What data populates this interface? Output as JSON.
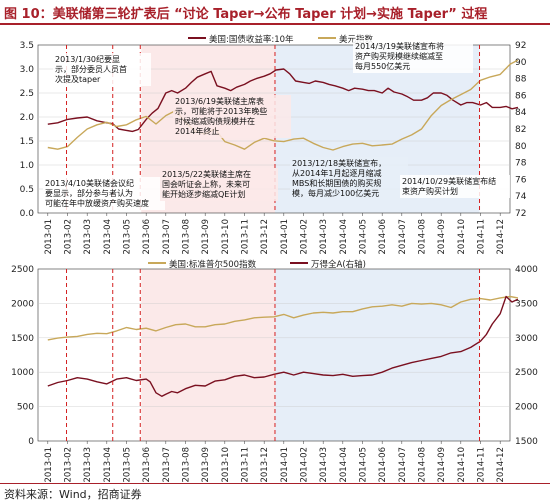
{
  "figure_title": "图 10：美联储第三轮扩表后 “讨论 Taper→公布 Taper 计划→实施 Taper” 过程",
  "source_note": "资料来源：Wind，招商证券",
  "colors": {
    "brand_red": "#a8202a",
    "series_dark": "#7a1020",
    "series_gold": "#c8a85a",
    "shade_pink": "#fbe9e9",
    "shade_blue": "#e6eef8",
    "event_line": "#d42020"
  },
  "chart_data": [
    {
      "type": "line",
      "legend": [
        "美国:国债收益率:10年",
        "美元指数"
      ],
      "xlabels": [
        "2013-01",
        "2013-02",
        "2013-03",
        "2013-04",
        "2013-05",
        "2013-06",
        "2013-07",
        "2013-08",
        "2013-09",
        "2013-10",
        "2013-11",
        "2013-12",
        "2014-01",
        "2014-02",
        "2014-03",
        "2014-04",
        "2014-05",
        "2014-06",
        "2014-07",
        "2014-08",
        "2014-09",
        "2014-10",
        "2014-11",
        "2014-12"
      ],
      "ylim_left": [
        0,
        3.5
      ],
      "yticks_left": [
        "0.0",
        "0.5",
        "1.0",
        "1.5",
        "2.0",
        "2.5",
        "3.0",
        "3.5"
      ],
      "ylim_right": [
        72,
        92
      ],
      "yticks_right": [
        "72",
        "74",
        "76",
        "78",
        "80",
        "82",
        "84",
        "86",
        "88",
        "90",
        "92"
      ],
      "shaded_periods": [
        {
          "start": 4.75,
          "end": 11.55,
          "color": "pink"
        },
        {
          "start": 11.55,
          "end": 21.95,
          "color": "blue"
        }
      ],
      "event_lines": [
        0.95,
        3.3,
        4.7,
        11.55,
        21.95
      ],
      "series": [
        {
          "name": "美国:国债收益率:10年",
          "axis": "left",
          "color": "#7a1020",
          "x": [
            0,
            0.5,
            1,
            1.5,
            2,
            2.5,
            3,
            3.3,
            3.6,
            4,
            4.3,
            4.6,
            5,
            5.3,
            5.6,
            6,
            6.3,
            6.6,
            7,
            7.3,
            7.6,
            8,
            8.3,
            8.6,
            9,
            9.3,
            9.6,
            10,
            10.3,
            10.6,
            11,
            11.3,
            11.6,
            12,
            12.3,
            12.6,
            13,
            13.3,
            13.6,
            14,
            14.3,
            14.6,
            15,
            15.3,
            15.6,
            16,
            16.3,
            16.6,
            17,
            17.3,
            17.6,
            18,
            18.3,
            18.6,
            19,
            19.3,
            19.6,
            20,
            20.3,
            20.6,
            21,
            21.3,
            21.6,
            22,
            22.3,
            22.6,
            23,
            23.3,
            23.6,
            23.9
          ],
          "y": [
            1.85,
            1.88,
            1.95,
            1.98,
            2.0,
            1.92,
            1.88,
            1.86,
            1.75,
            1.72,
            1.7,
            1.74,
            1.95,
            2.08,
            2.18,
            2.5,
            2.55,
            2.5,
            2.6,
            2.72,
            2.83,
            2.9,
            2.95,
            2.65,
            2.6,
            2.55,
            2.62,
            2.68,
            2.75,
            2.8,
            2.85,
            2.9,
            2.98,
            3.0,
            2.9,
            2.75,
            2.72,
            2.7,
            2.75,
            2.72,
            2.68,
            2.65,
            2.6,
            2.55,
            2.6,
            2.58,
            2.55,
            2.55,
            2.5,
            2.6,
            2.52,
            2.48,
            2.42,
            2.35,
            2.35,
            2.4,
            2.5,
            2.5,
            2.45,
            2.35,
            2.25,
            2.3,
            2.3,
            2.25,
            2.3,
            2.2,
            2.2,
            2.22,
            2.17,
            2.2
          ]
        },
        {
          "name": "美元指数",
          "axis": "right",
          "color": "#c8a85a",
          "x": [
            0,
            0.5,
            1,
            1.5,
            2,
            2.5,
            3,
            3.5,
            4,
            4.5,
            5,
            5.5,
            6,
            6.5,
            7,
            7.5,
            8,
            8.5,
            9,
            9.5,
            10,
            10.5,
            11,
            11.5,
            12,
            12.5,
            13,
            13.5,
            14,
            14.5,
            15,
            15.5,
            16,
            16.5,
            17,
            17.5,
            18,
            18.5,
            19,
            19.5,
            20,
            20.5,
            21,
            21.5,
            22,
            22.5,
            23,
            23.5,
            23.9
          ],
          "y": [
            79.8,
            79.6,
            79.9,
            81,
            82,
            82.5,
            82.8,
            82.3,
            82.5,
            83.1,
            83.5,
            82.6,
            83.6,
            84.2,
            82.8,
            81.7,
            81.4,
            82,
            80.5,
            80.1,
            79.6,
            80.4,
            80.9,
            80.6,
            80.5,
            80.8,
            80.9,
            80.3,
            79.8,
            79.5,
            79.9,
            80.2,
            80.3,
            80,
            80.1,
            80.2,
            80.8,
            81.3,
            82,
            83.6,
            84.8,
            85.5,
            86.1,
            86.7,
            87.8,
            88.2,
            88.5,
            89.7,
            90.2
          ]
        }
      ],
      "annotations": [
        {
          "text": [
            "2013/1/30纪要显",
            "示，部分委员人员首",
            "次提及taper"
          ]
        },
        {
          "text": [
            "2013/4/10美联储会议纪",
            "要显示，部分参与者认为",
            "可能在年中放缓资产购买速度"
          ]
        },
        {
          "text": [
            "2013/5/22美联储主席在",
            "国会听证会上称，未来可",
            "能开始逐步缩减QE计划"
          ]
        },
        {
          "text": [
            "2013/6/19美联储主席表",
            "示，可能将于2013年晚些",
            "时候缩减购债规模并在",
            "2014年终止"
          ]
        },
        {
          "text": [
            "2013/12/18美联储宣布，",
            "从2014年1月起逐月缩减",
            "MBS和长期国债的购买规",
            "模，每月减少100亿美元"
          ]
        },
        {
          "text": [
            "2014/3/19美联储宣布将",
            "资产购买规模继续缩减至",
            "每月550亿美元"
          ]
        },
        {
          "text": [
            "2014/10/29美联储宣布结",
            "束资产购买计划"
          ]
        }
      ]
    },
    {
      "type": "line",
      "legend": [
        "美国:标准普尔500指数",
        "万得全A(右轴)"
      ],
      "xlabels": [
        "2013-01",
        "2013-02",
        "2013-03",
        "2013-04",
        "2013-05",
        "2013-06",
        "2013-07",
        "2013-08",
        "2013-09",
        "2013-10",
        "2013-11",
        "2013-12",
        "2014-01",
        "2014-02",
        "2014-03",
        "2014-04",
        "2014-05",
        "2014-06",
        "2014-07",
        "2014-08",
        "2014-09",
        "2014-10",
        "2014-11",
        "2014-12"
      ],
      "ylim_left": [
        0,
        2500
      ],
      "yticks_left": [
        "0",
        "500",
        "1000",
        "1500",
        "2000",
        "2500"
      ],
      "ylim_right": [
        1500,
        4000
      ],
      "yticks_right": [
        "1500",
        "2000",
        "2500",
        "3000",
        "3500",
        "4000"
      ],
      "series": [
        {
          "name": "美国:标准普尔500指数",
          "axis": "left",
          "color": "#c8a85a",
          "x": [
            0,
            0.5,
            1,
            1.5,
            2,
            2.5,
            3,
            3.5,
            4,
            4.5,
            5,
            5.5,
            6,
            6.5,
            7,
            7.5,
            8,
            8.5,
            9,
            9.5,
            10,
            10.5,
            11,
            11.5,
            12,
            12.5,
            13,
            13.5,
            14,
            14.5,
            15,
            15.5,
            16,
            16.5,
            17,
            17.5,
            18,
            18.5,
            19,
            19.5,
            20,
            20.5,
            21,
            21.5,
            22,
            22.5,
            23,
            23.5,
            23.9
          ],
          "y": [
            1470,
            1495,
            1510,
            1520,
            1550,
            1565,
            1560,
            1600,
            1650,
            1620,
            1640,
            1600,
            1650,
            1690,
            1700,
            1660,
            1660,
            1690,
            1700,
            1740,
            1760,
            1790,
            1800,
            1805,
            1840,
            1790,
            1830,
            1860,
            1870,
            1860,
            1880,
            1880,
            1920,
            1950,
            1960,
            1980,
            1960,
            2000,
            1990,
            2000,
            1980,
            1940,
            2020,
            2060,
            2070,
            2050,
            2080,
            2100,
            2080
          ]
        },
        {
          "name": "万得全A(右轴)",
          "axis": "right",
          "color": "#7a1020",
          "x": [
            0,
            0.5,
            1,
            1.5,
            2,
            2.5,
            3,
            3.5,
            4,
            4.5,
            5,
            5.2,
            5.5,
            5.8,
            6,
            6.3,
            6.6,
            7,
            7.5,
            8,
            8.5,
            9,
            9.5,
            10,
            10.5,
            11,
            11.5,
            12,
            12.5,
            13,
            13.5,
            14,
            14.5,
            15,
            15.5,
            16,
            16.5,
            17,
            17.5,
            18,
            18.5,
            19,
            19.5,
            20,
            20.5,
            21,
            21.5,
            22,
            22.3,
            22.6,
            23,
            23.3,
            23.6,
            23.9
          ],
          "y": [
            2300,
            2350,
            2380,
            2420,
            2400,
            2360,
            2330,
            2400,
            2420,
            2380,
            2400,
            2360,
            2200,
            2150,
            2180,
            2220,
            2200,
            2260,
            2310,
            2300,
            2370,
            2390,
            2440,
            2460,
            2420,
            2430,
            2470,
            2500,
            2460,
            2500,
            2480,
            2460,
            2450,
            2470,
            2440,
            2450,
            2460,
            2500,
            2560,
            2600,
            2640,
            2670,
            2700,
            2730,
            2780,
            2800,
            2860,
            2950,
            3050,
            3200,
            3350,
            3600,
            3520,
            3560
          ]
        }
      ]
    }
  ]
}
